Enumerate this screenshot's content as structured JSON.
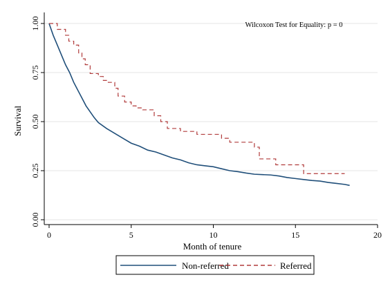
{
  "chart_data": {
    "type": "line",
    "title": "",
    "xlabel": "Month of tenure",
    "ylabel": "Survival",
    "xlim": [
      0,
      20
    ],
    "ylim": [
      0,
      1
    ],
    "x_ticks": [
      "0",
      "5",
      "10",
      "15",
      "20"
    ],
    "y_ticks": [
      "0.00",
      "0.25",
      "0.50",
      "0.75",
      "1.00"
    ],
    "grid": "horizontal",
    "annotation": "Wilcoxon Test for Equality: p = 0",
    "legend_position": "bottom",
    "series": [
      {
        "name": "Non-referred",
        "color": "#1f4e79",
        "style": "solid",
        "step": false,
        "x": [
          0,
          0.25,
          0.5,
          0.75,
          1.0,
          1.25,
          1.5,
          1.75,
          2.0,
          2.25,
          2.5,
          2.75,
          3.0,
          3.5,
          4.0,
          4.5,
          5.0,
          5.5,
          6.0,
          6.5,
          7.0,
          7.5,
          8.0,
          8.5,
          9.0,
          9.5,
          10.0,
          10.5,
          11.0,
          11.5,
          12.0,
          12.5,
          13.0,
          13.5,
          14.0,
          14.5,
          15.0,
          15.5,
          16.0,
          16.5,
          17.0,
          17.5,
          18.0,
          18.3
        ],
        "y": [
          1.0,
          0.94,
          0.89,
          0.84,
          0.79,
          0.75,
          0.7,
          0.66,
          0.62,
          0.58,
          0.55,
          0.52,
          0.495,
          0.465,
          0.44,
          0.415,
          0.39,
          0.375,
          0.355,
          0.345,
          0.33,
          0.315,
          0.305,
          0.29,
          0.28,
          0.275,
          0.27,
          0.26,
          0.25,
          0.245,
          0.238,
          0.232,
          0.23,
          0.228,
          0.223,
          0.215,
          0.21,
          0.205,
          0.2,
          0.197,
          0.19,
          0.185,
          0.18,
          0.175
        ]
      },
      {
        "name": "Referred",
        "color": "#b03a3a",
        "style": "dashed",
        "step": true,
        "x": [
          0,
          0.5,
          1.0,
          1.2,
          1.5,
          1.8,
          2.0,
          2.2,
          2.5,
          3.0,
          3.3,
          3.6,
          4.0,
          4.2,
          4.6,
          5.0,
          5.3,
          5.7,
          6.4,
          6.8,
          7.2,
          8.0,
          9.0,
          10.5,
          11.0,
          12.5,
          12.8,
          13.8,
          15.5,
          18.0
        ],
        "y": [
          1.0,
          0.97,
          0.94,
          0.91,
          0.89,
          0.85,
          0.82,
          0.79,
          0.745,
          0.73,
          0.71,
          0.7,
          0.67,
          0.63,
          0.6,
          0.58,
          0.57,
          0.56,
          0.53,
          0.5,
          0.465,
          0.45,
          0.435,
          0.415,
          0.395,
          0.37,
          0.31,
          0.28,
          0.235,
          0.235
        ]
      }
    ]
  }
}
